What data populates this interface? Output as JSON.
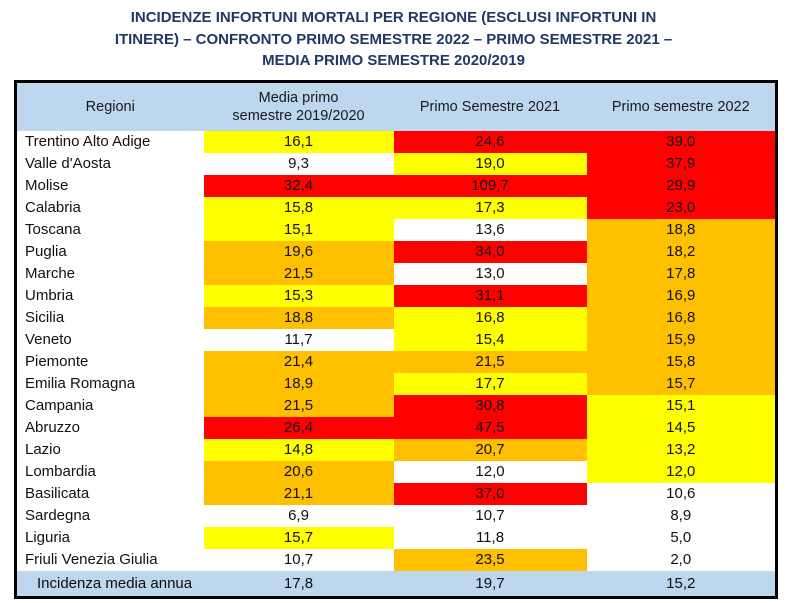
{
  "title_lines": [
    "INCIDENZE INFORTUNI MORTALI PER REGIONE (ESCLUSI INFORTUNI IN",
    "ITINERE) – CONFRONTO PRIMO SEMESTRE 2022 – PRIMO SEMESTRE 2021 –",
    "MEDIA PRIMO SEMESTRE 2020/2019"
  ],
  "colors": {
    "yellow": "#FFFF00",
    "orange": "#FFC000",
    "red": "#FF0000",
    "white": "#FFFFFF",
    "header_bg": "#BDD7EE",
    "title_text": "#1F3864",
    "border": "#000000"
  },
  "table": {
    "columns": [
      "Regioni",
      "Media primo semestre 2019/2020",
      "Primo Semestre 2021",
      "Primo semestre 2022"
    ],
    "rows": [
      {
        "region": "Trentino Alto Adige",
        "cells": [
          {
            "value": "16,1",
            "color": "yellow"
          },
          {
            "value": "24,6",
            "color": "red"
          },
          {
            "value": "39,0",
            "color": "red"
          }
        ]
      },
      {
        "region": "Valle d'Aosta",
        "cells": [
          {
            "value": "9,3",
            "color": "white"
          },
          {
            "value": "19,0",
            "color": "yellow"
          },
          {
            "value": "37,9",
            "color": "red"
          }
        ]
      },
      {
        "region": "Molise",
        "cells": [
          {
            "value": "32,4",
            "color": "red"
          },
          {
            "value": "109,7",
            "color": "red"
          },
          {
            "value": "29,9",
            "color": "red"
          }
        ]
      },
      {
        "region": "Calabria",
        "cells": [
          {
            "value": "15,8",
            "color": "yellow"
          },
          {
            "value": "17,3",
            "color": "yellow"
          },
          {
            "value": "23,0",
            "color": "red"
          }
        ]
      },
      {
        "region": "Toscana",
        "cells": [
          {
            "value": "15,1",
            "color": "yellow"
          },
          {
            "value": "13,6",
            "color": "white"
          },
          {
            "value": "18,8",
            "color": "orange"
          }
        ]
      },
      {
        "region": "Puglia",
        "cells": [
          {
            "value": "19,6",
            "color": "orange"
          },
          {
            "value": "34,0",
            "color": "red"
          },
          {
            "value": "18,2",
            "color": "orange"
          }
        ]
      },
      {
        "region": "Marche",
        "cells": [
          {
            "value": "21,5",
            "color": "orange"
          },
          {
            "value": "13,0",
            "color": "white"
          },
          {
            "value": "17,8",
            "color": "orange"
          }
        ]
      },
      {
        "region": "Umbria",
        "cells": [
          {
            "value": "15,3",
            "color": "yellow"
          },
          {
            "value": "31,1",
            "color": "red"
          },
          {
            "value": "16,9",
            "color": "orange"
          }
        ]
      },
      {
        "region": "Sicilia",
        "cells": [
          {
            "value": "18,8",
            "color": "orange"
          },
          {
            "value": "16,8",
            "color": "yellow"
          },
          {
            "value": "16,8",
            "color": "orange"
          }
        ]
      },
      {
        "region": "Veneto",
        "cells": [
          {
            "value": "11,7",
            "color": "white"
          },
          {
            "value": "15,4",
            "color": "yellow"
          },
          {
            "value": "15,9",
            "color": "orange"
          }
        ]
      },
      {
        "region": "Piemonte",
        "cells": [
          {
            "value": "21,4",
            "color": "orange"
          },
          {
            "value": "21,5",
            "color": "orange"
          },
          {
            "value": "15,8",
            "color": "orange"
          }
        ]
      },
      {
        "region": "Emilia Romagna",
        "cells": [
          {
            "value": "18,9",
            "color": "orange"
          },
          {
            "value": "17,7",
            "color": "yellow"
          },
          {
            "value": "15,7",
            "color": "orange"
          }
        ]
      },
      {
        "region": "Campania",
        "cells": [
          {
            "value": "21,5",
            "color": "orange"
          },
          {
            "value": "30,8",
            "color": "red"
          },
          {
            "value": "15,1",
            "color": "yellow"
          }
        ]
      },
      {
        "region": "Abruzzo",
        "cells": [
          {
            "value": "26,4",
            "color": "red"
          },
          {
            "value": "47,5",
            "color": "red"
          },
          {
            "value": "14,5",
            "color": "yellow"
          }
        ]
      },
      {
        "region": "Lazio",
        "cells": [
          {
            "value": "14,8",
            "color": "yellow"
          },
          {
            "value": "20,7",
            "color": "orange"
          },
          {
            "value": "13,2",
            "color": "yellow"
          }
        ]
      },
      {
        "region": "Lombardia",
        "cells": [
          {
            "value": "20,6",
            "color": "orange"
          },
          {
            "value": "12,0",
            "color": "white"
          },
          {
            "value": "12,0",
            "color": "yellow"
          }
        ]
      },
      {
        "region": "Basilicata",
        "cells": [
          {
            "value": "21,1",
            "color": "orange"
          },
          {
            "value": "37,0",
            "color": "red"
          },
          {
            "value": "10,6",
            "color": "white"
          }
        ]
      },
      {
        "region": "Sardegna",
        "cells": [
          {
            "value": "6,9",
            "color": "white"
          },
          {
            "value": "10,7",
            "color": "white"
          },
          {
            "value": "8,9",
            "color": "white"
          }
        ]
      },
      {
        "region": "Liguria",
        "cells": [
          {
            "value": "15,7",
            "color": "yellow"
          },
          {
            "value": "11,8",
            "color": "white"
          },
          {
            "value": "5,0",
            "color": "white"
          }
        ]
      },
      {
        "region": "Friuli Venezia Giulia",
        "cells": [
          {
            "value": "10,7",
            "color": "white"
          },
          {
            "value": "23,5",
            "color": "orange"
          },
          {
            "value": "2,0",
            "color": "white"
          }
        ]
      }
    ],
    "footer": {
      "label": "Incidenza media annua",
      "values": [
        "17,8",
        "19,7",
        "15,2"
      ]
    }
  }
}
